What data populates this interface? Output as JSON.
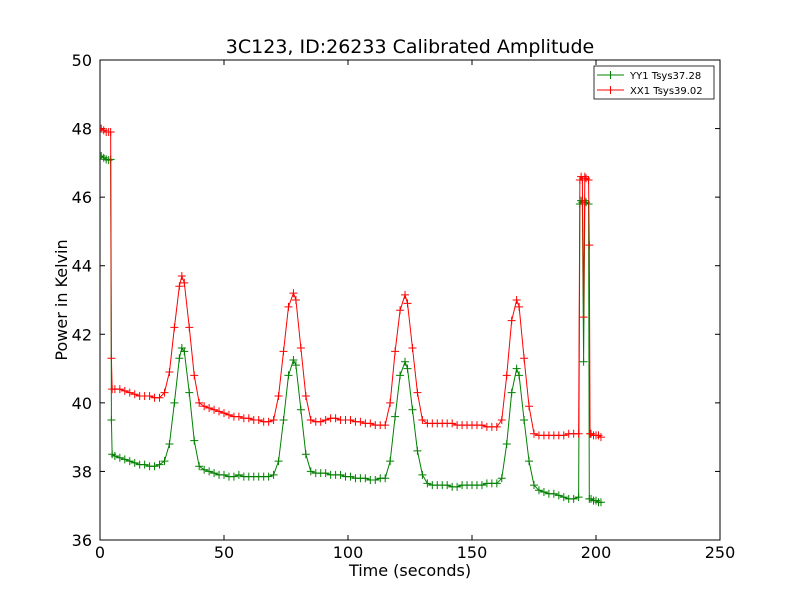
{
  "chart_data": {
    "type": "line",
    "title": "3C123, ID:26233 Calibrated Amplitude",
    "xlabel": "Time (seconds)",
    "ylabel": "Power in Kelvin",
    "xlim": [
      0,
      250
    ],
    "ylim": [
      36,
      50
    ],
    "xticks": [
      "0",
      "50",
      "100",
      "150",
      "200",
      "250"
    ],
    "yticks": [
      "36",
      "38",
      "40",
      "42",
      "44",
      "46",
      "48",
      "50"
    ],
    "grid": false,
    "legend_position": "top-right",
    "marker": "+",
    "series": [
      {
        "name": "YY1 Tsys37.28",
        "color": "#008000",
        "points": [
          [
            0.5,
            47.2
          ],
          [
            1.5,
            47.15
          ],
          [
            2.5,
            47.1
          ],
          [
            3.5,
            47.08
          ],
          [
            4.3,
            47.1
          ],
          [
            4.6,
            39.5
          ],
          [
            4.9,
            38.5
          ],
          [
            6,
            38.45
          ],
          [
            8,
            38.4
          ],
          [
            10,
            38.35
          ],
          [
            12,
            38.3
          ],
          [
            14,
            38.25
          ],
          [
            16,
            38.2
          ],
          [
            18,
            38.2
          ],
          [
            20,
            38.15
          ],
          [
            22,
            38.15
          ],
          [
            24,
            38.2
          ],
          [
            26,
            38.3
          ],
          [
            28,
            38.8
          ],
          [
            30,
            40.0
          ],
          [
            32,
            41.3
          ],
          [
            33,
            41.6
          ],
          [
            34,
            41.5
          ],
          [
            36,
            40.3
          ],
          [
            38,
            38.9
          ],
          [
            40,
            38.15
          ],
          [
            42,
            38.05
          ],
          [
            44,
            38.0
          ],
          [
            46,
            37.95
          ],
          [
            48,
            37.9
          ],
          [
            50,
            37.9
          ],
          [
            52,
            37.85
          ],
          [
            54,
            37.85
          ],
          [
            56,
            37.9
          ],
          [
            58,
            37.85
          ],
          [
            60,
            37.85
          ],
          [
            62,
            37.85
          ],
          [
            64,
            37.85
          ],
          [
            66,
            37.85
          ],
          [
            68,
            37.85
          ],
          [
            70,
            37.9
          ],
          [
            72,
            38.3
          ],
          [
            74,
            39.5
          ],
          [
            76,
            40.8
          ],
          [
            78,
            41.25
          ],
          [
            79,
            41.1
          ],
          [
            81,
            39.8
          ],
          [
            83,
            38.5
          ],
          [
            85,
            38.0
          ],
          [
            87,
            37.95
          ],
          [
            89,
            37.95
          ],
          [
            91,
            37.95
          ],
          [
            93,
            37.9
          ],
          [
            95,
            37.9
          ],
          [
            97,
            37.9
          ],
          [
            99,
            37.85
          ],
          [
            101,
            37.85
          ],
          [
            103,
            37.8
          ],
          [
            105,
            37.8
          ],
          [
            107,
            37.8
          ],
          [
            109,
            37.75
          ],
          [
            111,
            37.75
          ],
          [
            113,
            37.8
          ],
          [
            115,
            37.8
          ],
          [
            117,
            38.3
          ],
          [
            119,
            39.6
          ],
          [
            121,
            40.8
          ],
          [
            123,
            41.2
          ],
          [
            124,
            41.0
          ],
          [
            126,
            39.8
          ],
          [
            128,
            38.6
          ],
          [
            130,
            37.9
          ],
          [
            132,
            37.65
          ],
          [
            134,
            37.6
          ],
          [
            136,
            37.6
          ],
          [
            138,
            37.6
          ],
          [
            140,
            37.6
          ],
          [
            142,
            37.55
          ],
          [
            144,
            37.55
          ],
          [
            146,
            37.6
          ],
          [
            148,
            37.6
          ],
          [
            150,
            37.6
          ],
          [
            152,
            37.6
          ],
          [
            154,
            37.6
          ],
          [
            156,
            37.65
          ],
          [
            158,
            37.65
          ],
          [
            160,
            37.65
          ],
          [
            162,
            37.8
          ],
          [
            164,
            38.8
          ],
          [
            166,
            40.3
          ],
          [
            168,
            41.0
          ],
          [
            169,
            40.8
          ],
          [
            171,
            39.5
          ],
          [
            173,
            38.3
          ],
          [
            175,
            37.6
          ],
          [
            177,
            37.45
          ],
          [
            179,
            37.4
          ],
          [
            181,
            37.35
          ],
          [
            183,
            37.35
          ],
          [
            185,
            37.3
          ],
          [
            187,
            37.25
          ],
          [
            189,
            37.2
          ],
          [
            191,
            37.2
          ],
          [
            193,
            37.25
          ],
          [
            193.5,
            45.8
          ],
          [
            194,
            45.9
          ],
          [
            194.5,
            45.85
          ],
          [
            195,
            41.2
          ],
          [
            195.5,
            45.9
          ],
          [
            196,
            45.85
          ],
          [
            197,
            45.8
          ],
          [
            197.3,
            37.2
          ],
          [
            198,
            37.2
          ],
          [
            199,
            37.15
          ],
          [
            200,
            37.15
          ],
          [
            201,
            37.1
          ],
          [
            202,
            37.1
          ]
        ]
      },
      {
        "name": "XX1 Tsys39.02",
        "color": "#ff0000",
        "points": [
          [
            0.5,
            48.0
          ],
          [
            1.5,
            47.95
          ],
          [
            2.5,
            47.9
          ],
          [
            3.5,
            47.9
          ],
          [
            4.3,
            47.9
          ],
          [
            4.6,
            41.3
          ],
          [
            4.9,
            40.4
          ],
          [
            6,
            40.4
          ],
          [
            8,
            40.4
          ],
          [
            10,
            40.35
          ],
          [
            12,
            40.3
          ],
          [
            14,
            40.25
          ],
          [
            16,
            40.2
          ],
          [
            18,
            40.2
          ],
          [
            20,
            40.2
          ],
          [
            22,
            40.15
          ],
          [
            24,
            40.15
          ],
          [
            26,
            40.3
          ],
          [
            28,
            40.9
          ],
          [
            30,
            42.2
          ],
          [
            32,
            43.4
          ],
          [
            33,
            43.7
          ],
          [
            34,
            43.5
          ],
          [
            36,
            42.2
          ],
          [
            38,
            40.8
          ],
          [
            40,
            40.0
          ],
          [
            42,
            39.9
          ],
          [
            44,
            39.85
          ],
          [
            46,
            39.8
          ],
          [
            48,
            39.75
          ],
          [
            50,
            39.7
          ],
          [
            52,
            39.65
          ],
          [
            54,
            39.6
          ],
          [
            56,
            39.6
          ],
          [
            58,
            39.55
          ],
          [
            60,
            39.55
          ],
          [
            62,
            39.5
          ],
          [
            64,
            39.5
          ],
          [
            66,
            39.45
          ],
          [
            68,
            39.45
          ],
          [
            70,
            39.5
          ],
          [
            72,
            40.2
          ],
          [
            74,
            41.5
          ],
          [
            76,
            42.8
          ],
          [
            78,
            43.2
          ],
          [
            79,
            43.0
          ],
          [
            81,
            41.6
          ],
          [
            83,
            40.2
          ],
          [
            85,
            39.5
          ],
          [
            87,
            39.45
          ],
          [
            89,
            39.45
          ],
          [
            91,
            39.5
          ],
          [
            93,
            39.55
          ],
          [
            95,
            39.55
          ],
          [
            97,
            39.5
          ],
          [
            99,
            39.5
          ],
          [
            101,
            39.5
          ],
          [
            103,
            39.45
          ],
          [
            105,
            39.45
          ],
          [
            107,
            39.4
          ],
          [
            109,
            39.4
          ],
          [
            111,
            39.35
          ],
          [
            113,
            39.35
          ],
          [
            115,
            39.35
          ],
          [
            117,
            40.0
          ],
          [
            119,
            41.5
          ],
          [
            121,
            42.7
          ],
          [
            123,
            43.15
          ],
          [
            124,
            42.9
          ],
          [
            126,
            41.6
          ],
          [
            128,
            40.3
          ],
          [
            130,
            39.5
          ],
          [
            132,
            39.4
          ],
          [
            134,
            39.4
          ],
          [
            136,
            39.4
          ],
          [
            138,
            39.4
          ],
          [
            140,
            39.4
          ],
          [
            142,
            39.4
          ],
          [
            144,
            39.35
          ],
          [
            146,
            39.35
          ],
          [
            148,
            39.35
          ],
          [
            150,
            39.35
          ],
          [
            152,
            39.35
          ],
          [
            154,
            39.35
          ],
          [
            156,
            39.3
          ],
          [
            158,
            39.3
          ],
          [
            160,
            39.3
          ],
          [
            162,
            39.5
          ],
          [
            164,
            40.8
          ],
          [
            166,
            42.4
          ],
          [
            168,
            43.0
          ],
          [
            169,
            42.8
          ],
          [
            171,
            41.3
          ],
          [
            173,
            39.9
          ],
          [
            175,
            39.1
          ],
          [
            177,
            39.05
          ],
          [
            179,
            39.05
          ],
          [
            181,
            39.05
          ],
          [
            183,
            39.05
          ],
          [
            185,
            39.05
          ],
          [
            187,
            39.05
          ],
          [
            189,
            39.1
          ],
          [
            191,
            39.1
          ],
          [
            193,
            39.1
          ],
          [
            193.5,
            46.5
          ],
          [
            194,
            46.6
          ],
          [
            194.5,
            46.5
          ],
          [
            195,
            42.5
          ],
          [
            195.5,
            46.6
          ],
          [
            196,
            46.55
          ],
          [
            197,
            46.5
          ],
          [
            197.3,
            44.6
          ],
          [
            197.6,
            39.1
          ],
          [
            198,
            39.1
          ],
          [
            199,
            39.05
          ],
          [
            200,
            39.05
          ],
          [
            201,
            39.05
          ],
          [
            202,
            39.0
          ]
        ]
      }
    ]
  }
}
